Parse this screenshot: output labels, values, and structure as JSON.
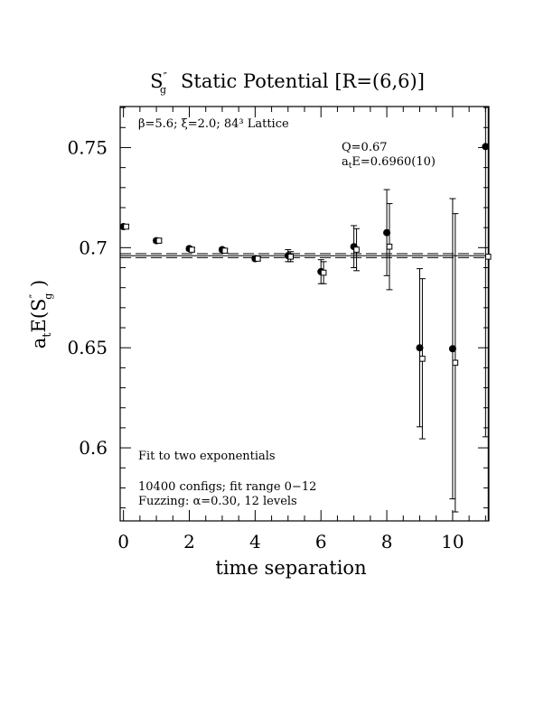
{
  "chart_data": {
    "type": "scatter",
    "title": {
      "symbol": "S",
      "symbol_sub": "g",
      "symbol_sup": "″",
      "text": "Static Potential [R=(6,6)]"
    },
    "xlabel": "time separation",
    "ylabel": {
      "prefix": "a",
      "prefix_sub": "t",
      "body": "E(S",
      "body_sup": "″",
      "body_sub": "g",
      "suffix": " )"
    },
    "xlim": [
      -0.1,
      11.1
    ],
    "ylim": [
      0.5635,
      0.7705
    ],
    "x_ticks": [
      0,
      2,
      4,
      6,
      8,
      10
    ],
    "y_ticks": [
      0.6,
      0.65,
      0.7,
      0.75
    ],
    "x_tick_labels": [
      "0",
      "2",
      "4",
      "6",
      "8",
      "10"
    ],
    "y_tick_labels": [
      "0.6",
      "0.65",
      "0.7",
      "0.75"
    ],
    "series": [
      {
        "marker": "filled-circle",
        "points": [
          {
            "x": 0,
            "y": 0.7105,
            "err": 0.001
          },
          {
            "x": 1,
            "y": 0.7035,
            "err": 0.001
          },
          {
            "x": 2,
            "y": 0.6995,
            "err": 0.001
          },
          {
            "x": 3,
            "y": 0.699,
            "err": 0.001
          },
          {
            "x": 4,
            "y": 0.6945,
            "err": 0.001
          },
          {
            "x": 5,
            "y": 0.696,
            "err": 0.003
          },
          {
            "x": 6,
            "y": 0.688,
            "err": 0.006
          },
          {
            "x": 7,
            "y": 0.7005,
            "err": 0.0105
          },
          {
            "x": 8,
            "y": 0.7075,
            "err": 0.0215
          },
          {
            "x": 9,
            "y": 0.65,
            "err": 0.0395
          },
          {
            "x": 10,
            "y": 0.6495,
            "err": 0.075
          },
          {
            "x": 11,
            "y": 0.7505,
            "err": 0.145
          }
        ]
      },
      {
        "marker": "open-square",
        "points": [
          {
            "x": 0.08,
            "y": 0.7105,
            "err": 0.001
          },
          {
            "x": 1.08,
            "y": 0.7035,
            "err": 0.001
          },
          {
            "x": 2.08,
            "y": 0.699,
            "err": 0.001
          },
          {
            "x": 3.08,
            "y": 0.6985,
            "err": 0.001
          },
          {
            "x": 4.08,
            "y": 0.6945,
            "err": 0.001
          },
          {
            "x": 5.08,
            "y": 0.6955,
            "err": 0.0025
          },
          {
            "x": 6.08,
            "y": 0.6875,
            "err": 0.0055
          },
          {
            "x": 7.08,
            "y": 0.699,
            "err": 0.0105
          },
          {
            "x": 8.08,
            "y": 0.7005,
            "err": 0.0215
          },
          {
            "x": 9.08,
            "y": 0.6445,
            "err": 0.04
          },
          {
            "x": 10.08,
            "y": 0.6425,
            "err": 0.0745
          },
          {
            "x": 11.08,
            "y": 0.6955,
            "err": 0.14
          }
        ]
      }
    ],
    "fit": {
      "center": 0.696,
      "err": 0.001,
      "x_from": -0.1,
      "x_to": 11.1
    },
    "annotations": {
      "lattice": "β=5.6; ξ=2.0; 84³ Lattice",
      "q": "Q=0.67",
      "fit_value_prefix": "a",
      "fit_value_sub": "t",
      "fit_value_rest": "E=0.6960(10)",
      "fit_type": "Fit to two exponentials",
      "configs": "10400 configs; fit range 0−12",
      "fuzzing": "Fuzzing: α=0.30, 12 levels"
    }
  }
}
